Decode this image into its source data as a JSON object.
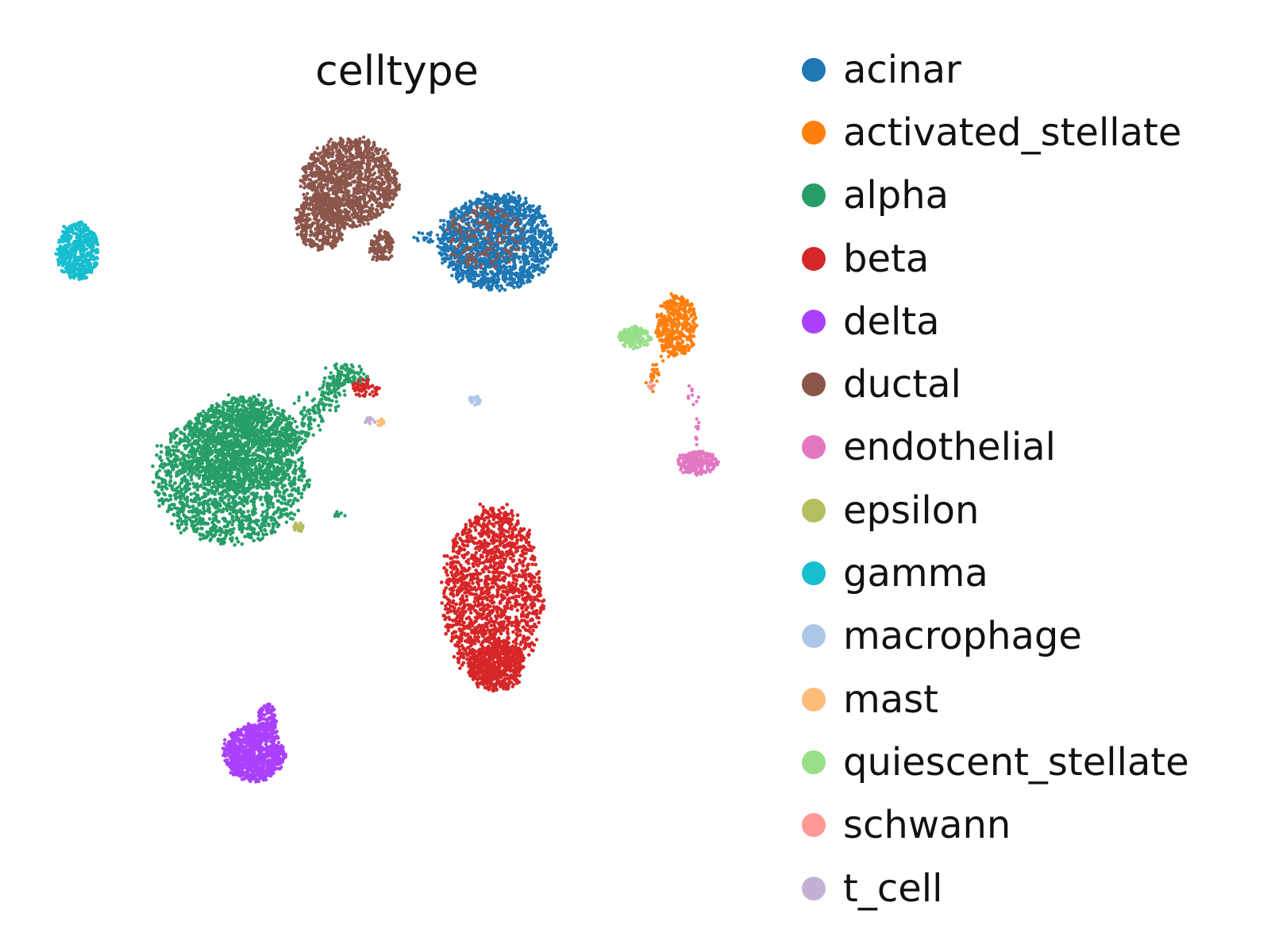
{
  "chart_data": {
    "type": "scatter",
    "title": "celltype",
    "xlabel": "",
    "ylabel": "",
    "grid": false,
    "axes_visible": false,
    "legend_placement": "right",
    "series": [
      {
        "name": "acinar",
        "color": "#1f77b4"
      },
      {
        "name": "activated_stellate",
        "color": "#ff7f0e"
      },
      {
        "name": "alpha",
        "color": "#279e68"
      },
      {
        "name": "beta",
        "color": "#d62728"
      },
      {
        "name": "delta",
        "color": "#aa40fc"
      },
      {
        "name": "ductal",
        "color": "#8c564b"
      },
      {
        "name": "endothelial",
        "color": "#e377c2"
      },
      {
        "name": "epsilon",
        "color": "#b5bd61"
      },
      {
        "name": "gamma",
        "color": "#17becf"
      },
      {
        "name": "macrophage",
        "color": "#aec7e8"
      },
      {
        "name": "mast",
        "color": "#ffbb78"
      },
      {
        "name": "quiescent_stellate",
        "color": "#98df8a"
      },
      {
        "name": "schwann",
        "color": "#ff9896"
      },
      {
        "name": "t_cell",
        "color": "#c5b0d5"
      }
    ]
  }
}
